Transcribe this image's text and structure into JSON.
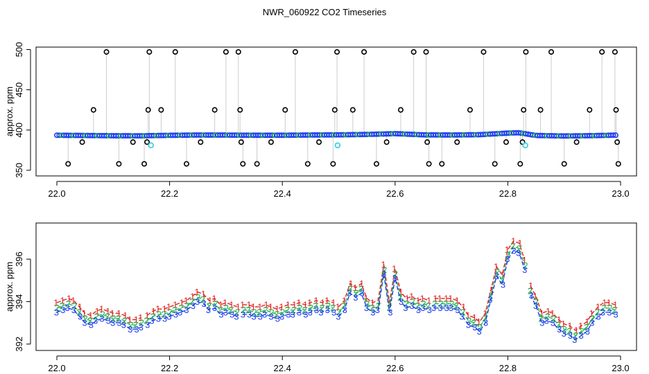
{
  "chart_data": [
    {
      "type": "scatter",
      "title": "NWR_060922  CO2 Timeseries",
      "ylabel": "approx. ppm",
      "xlim": [
        22.0,
        23.0
      ],
      "ylim": [
        343,
        503
      ],
      "xticks": [
        "22.0",
        "22.2",
        "22.4",
        "22.6",
        "22.8",
        "23.0"
      ],
      "yticks": [
        "350",
        "400",
        "450",
        "500"
      ],
      "colors": {
        "baseline": "#1f3df2",
        "baseline_alt": "#22b34a",
        "outlier": "#000000",
        "cal": "#40d0e0",
        "trace": "#999999",
        "accent": "#e06020"
      },
      "baseline": [
        [
          22.0,
          393.5
        ],
        [
          22.05,
          393.2
        ],
        [
          22.1,
          392.9
        ],
        [
          22.15,
          392.8
        ],
        [
          22.2,
          393.4
        ],
        [
          22.25,
          393.8
        ],
        [
          22.3,
          393.7
        ],
        [
          22.35,
          393.5
        ],
        [
          22.4,
          393.5
        ],
        [
          22.45,
          393.8
        ],
        [
          22.5,
          394.0
        ],
        [
          22.55,
          394.5
        ],
        [
          22.6,
          395.5
        ],
        [
          22.65,
          394.0
        ],
        [
          22.7,
          393.8
        ],
        [
          22.75,
          394.2
        ],
        [
          22.8,
          396.2
        ],
        [
          22.82,
          396.6
        ],
        [
          22.85,
          393.2
        ],
        [
          22.9,
          392.6
        ],
        [
          22.95,
          393.0
        ],
        [
          22.99,
          393.6
        ]
      ],
      "outliers": [
        [
          22.02,
          358
        ],
        [
          22.045,
          385
        ],
        [
          22.065,
          425
        ],
        [
          22.088,
          497
        ],
        [
          22.11,
          358
        ],
        [
          22.135,
          385
        ],
        [
          22.155,
          358
        ],
        [
          22.16,
          385
        ],
        [
          22.162,
          425
        ],
        [
          22.164,
          497
        ],
        [
          22.185,
          425
        ],
        [
          22.21,
          497
        ],
        [
          22.23,
          358
        ],
        [
          22.255,
          385
        ],
        [
          22.28,
          425
        ],
        [
          22.3,
          497
        ],
        [
          22.322,
          497
        ],
        [
          22.325,
          425
        ],
        [
          22.327,
          385
        ],
        [
          22.33,
          358
        ],
        [
          22.355,
          358
        ],
        [
          22.38,
          385
        ],
        [
          22.405,
          425
        ],
        [
          22.423,
          497
        ],
        [
          22.445,
          358
        ],
        [
          22.465,
          385
        ],
        [
          22.49,
          358
        ],
        [
          22.493,
          425
        ],
        [
          22.497,
          497
        ],
        [
          22.525,
          425
        ],
        [
          22.545,
          497
        ],
        [
          22.567,
          358
        ],
        [
          22.585,
          385
        ],
        [
          22.61,
          425
        ],
        [
          22.633,
          497
        ],
        [
          22.655,
          497
        ],
        [
          22.657,
          385
        ],
        [
          22.66,
          358
        ],
        [
          22.683,
          358
        ],
        [
          22.71,
          385
        ],
        [
          22.733,
          425
        ],
        [
          22.757,
          497
        ],
        [
          22.777,
          358
        ],
        [
          22.797,
          385
        ],
        [
          22.822,
          358
        ],
        [
          22.826,
          385
        ],
        [
          22.828,
          425
        ],
        [
          22.832,
          497
        ],
        [
          22.858,
          425
        ],
        [
          22.877,
          497
        ],
        [
          22.9,
          358
        ],
        [
          22.922,
          385
        ],
        [
          22.945,
          425
        ],
        [
          22.967,
          497
        ],
        [
          22.99,
          497
        ],
        [
          22.992,
          425
        ],
        [
          22.994,
          385
        ],
        [
          22.996,
          358
        ]
      ],
      "calibration": [
        [
          22.167,
          381
        ],
        [
          22.498,
          381
        ],
        [
          22.831,
          381
        ]
      ]
    },
    {
      "type": "line",
      "ylabel": "approx. ppm",
      "xlim": [
        22.0,
        23.0
      ],
      "ylim": [
        391.7,
        397.7
      ],
      "xticks": [
        "22.0",
        "22.2",
        "22.4",
        "22.6",
        "22.8",
        "23.0"
      ],
      "yticks": [
        "392",
        "394",
        "396"
      ],
      "series": [
        {
          "label": "1",
          "color": "#e02020",
          "offset": 0.25
        },
        {
          "label": "2",
          "color": "#22b34a",
          "offset": 0.0
        },
        {
          "label": "3",
          "color": "#1f3df2",
          "offset": -0.2
        }
      ],
      "breaks": [
        22.16,
        22.33,
        22.5,
        22.665,
        22.835
      ],
      "profile": [
        [
          22.0,
          393.7
        ],
        [
          22.01,
          393.8
        ],
        [
          22.02,
          393.9
        ],
        [
          22.03,
          393.8
        ],
        [
          22.04,
          393.5
        ],
        [
          22.05,
          393.2
        ],
        [
          22.06,
          393.1
        ],
        [
          22.07,
          393.3
        ],
        [
          22.08,
          393.4
        ],
        [
          22.09,
          393.3
        ],
        [
          22.1,
          393.2
        ],
        [
          22.11,
          393.2
        ],
        [
          22.12,
          393.1
        ],
        [
          22.13,
          392.9
        ],
        [
          22.14,
          392.9
        ],
        [
          22.15,
          393.0
        ],
        [
          22.16,
          393.1
        ],
        [
          22.17,
          393.3
        ],
        [
          22.18,
          393.4
        ],
        [
          22.19,
          393.4
        ],
        [
          22.2,
          393.5
        ],
        [
          22.21,
          393.6
        ],
        [
          22.22,
          393.7
        ],
        [
          22.23,
          393.8
        ],
        [
          22.24,
          394.0
        ],
        [
          22.25,
          394.2
        ],
        [
          22.26,
          394.1
        ],
        [
          22.27,
          393.8
        ],
        [
          22.28,
          393.9
        ],
        [
          22.29,
          393.6
        ],
        [
          22.3,
          393.7
        ],
        [
          22.31,
          393.6
        ],
        [
          22.32,
          393.5
        ],
        [
          22.33,
          393.6
        ],
        [
          22.34,
          393.6
        ],
        [
          22.35,
          393.5
        ],
        [
          22.36,
          393.5
        ],
        [
          22.37,
          393.6
        ],
        [
          22.38,
          393.5
        ],
        [
          22.39,
          393.4
        ],
        [
          22.4,
          393.5
        ],
        [
          22.41,
          393.6
        ],
        [
          22.42,
          393.6
        ],
        [
          22.43,
          393.7
        ],
        [
          22.44,
          393.6
        ],
        [
          22.45,
          393.7
        ],
        [
          22.46,
          393.8
        ],
        [
          22.47,
          393.7
        ],
        [
          22.48,
          393.8
        ],
        [
          22.49,
          393.7
        ],
        [
          22.5,
          393.5
        ],
        [
          22.51,
          393.8
        ],
        [
          22.52,
          394.6
        ],
        [
          22.53,
          394.4
        ],
        [
          22.54,
          394.6
        ],
        [
          22.55,
          393.9
        ],
        [
          22.56,
          393.7
        ],
        [
          22.57,
          393.8
        ],
        [
          22.58,
          395.5
        ],
        [
          22.59,
          393.7
        ],
        [
          22.6,
          395.3
        ],
        [
          22.61,
          394.2
        ],
        [
          22.62,
          393.9
        ],
        [
          22.63,
          394.0
        ],
        [
          22.64,
          393.8
        ],
        [
          22.65,
          393.9
        ],
        [
          22.66,
          393.8
        ],
        [
          22.67,
          393.9
        ],
        [
          22.68,
          393.9
        ],
        [
          22.69,
          393.9
        ],
        [
          22.7,
          393.9
        ],
        [
          22.71,
          393.8
        ],
        [
          22.72,
          393.5
        ],
        [
          22.73,
          393.1
        ],
        [
          22.74,
          393.0
        ],
        [
          22.75,
          392.8
        ],
        [
          22.76,
          393.2
        ],
        [
          22.77,
          394.3
        ],
        [
          22.78,
          395.4
        ],
        [
          22.79,
          395.0
        ],
        [
          22.8,
          396.2
        ],
        [
          22.81,
          396.6
        ],
        [
          22.82,
          396.5
        ],
        [
          22.83,
          395.7
        ],
        [
          22.84,
          394.5
        ],
        [
          22.85,
          394.0
        ],
        [
          22.86,
          393.2
        ],
        [
          22.87,
          393.3
        ],
        [
          22.88,
          393.2
        ],
        [
          22.89,
          392.9
        ],
        [
          22.9,
          392.7
        ],
        [
          22.91,
          392.6
        ],
        [
          22.92,
          392.4
        ],
        [
          22.93,
          392.6
        ],
        [
          22.94,
          392.8
        ],
        [
          22.95,
          393.2
        ],
        [
          22.96,
          393.5
        ],
        [
          22.97,
          393.7
        ],
        [
          22.98,
          393.7
        ],
        [
          22.99,
          393.6
        ]
      ]
    }
  ]
}
